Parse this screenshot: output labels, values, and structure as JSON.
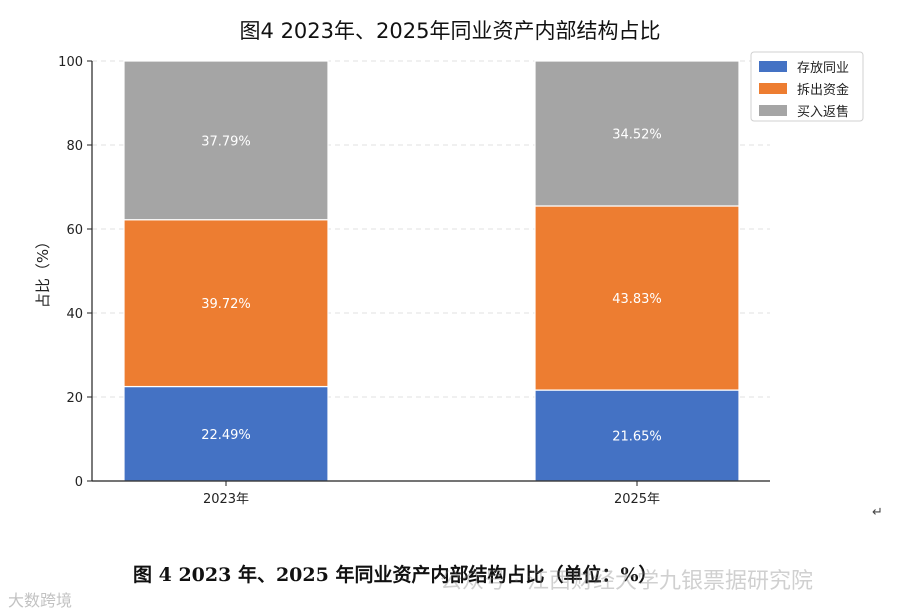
{
  "chart_data": {
    "type": "bar",
    "stacked": true,
    "title": "图4  2023年、2025年同业资产内部结构占比",
    "xlabel": "",
    "ylabel": "占比（%）",
    "categories": [
      "2023年",
      "2025年"
    ],
    "ylim": [
      0,
      100
    ],
    "yticks": [
      0,
      20,
      40,
      60,
      80,
      100
    ],
    "grid": "horizontal-dashed",
    "legend_position": "top-right",
    "series": [
      {
        "name": "存放同业",
        "values": [
          22.49,
          21.65
        ],
        "labels": [
          "22.49%",
          "21.65%"
        ],
        "color": "#4472c4"
      },
      {
        "name": "拆出资金",
        "values": [
          39.72,
          43.83
        ],
        "labels": [
          "39.72%",
          "43.83%"
        ],
        "color": "#ed7d31"
      },
      {
        "name": "买入返售",
        "values": [
          37.79,
          34.52
        ],
        "labels": [
          "37.79%",
          "34.52%"
        ],
        "color": "#a5a5a5"
      }
    ]
  },
  "caption": "图 4  2023 年、2025 年同业资产内部结构占比（单位：%）",
  "return_mark": "↵",
  "watermark": {
    "source": "公众号 · 江西财经大学九银票据研究院",
    "corner": "大数跨境"
  }
}
